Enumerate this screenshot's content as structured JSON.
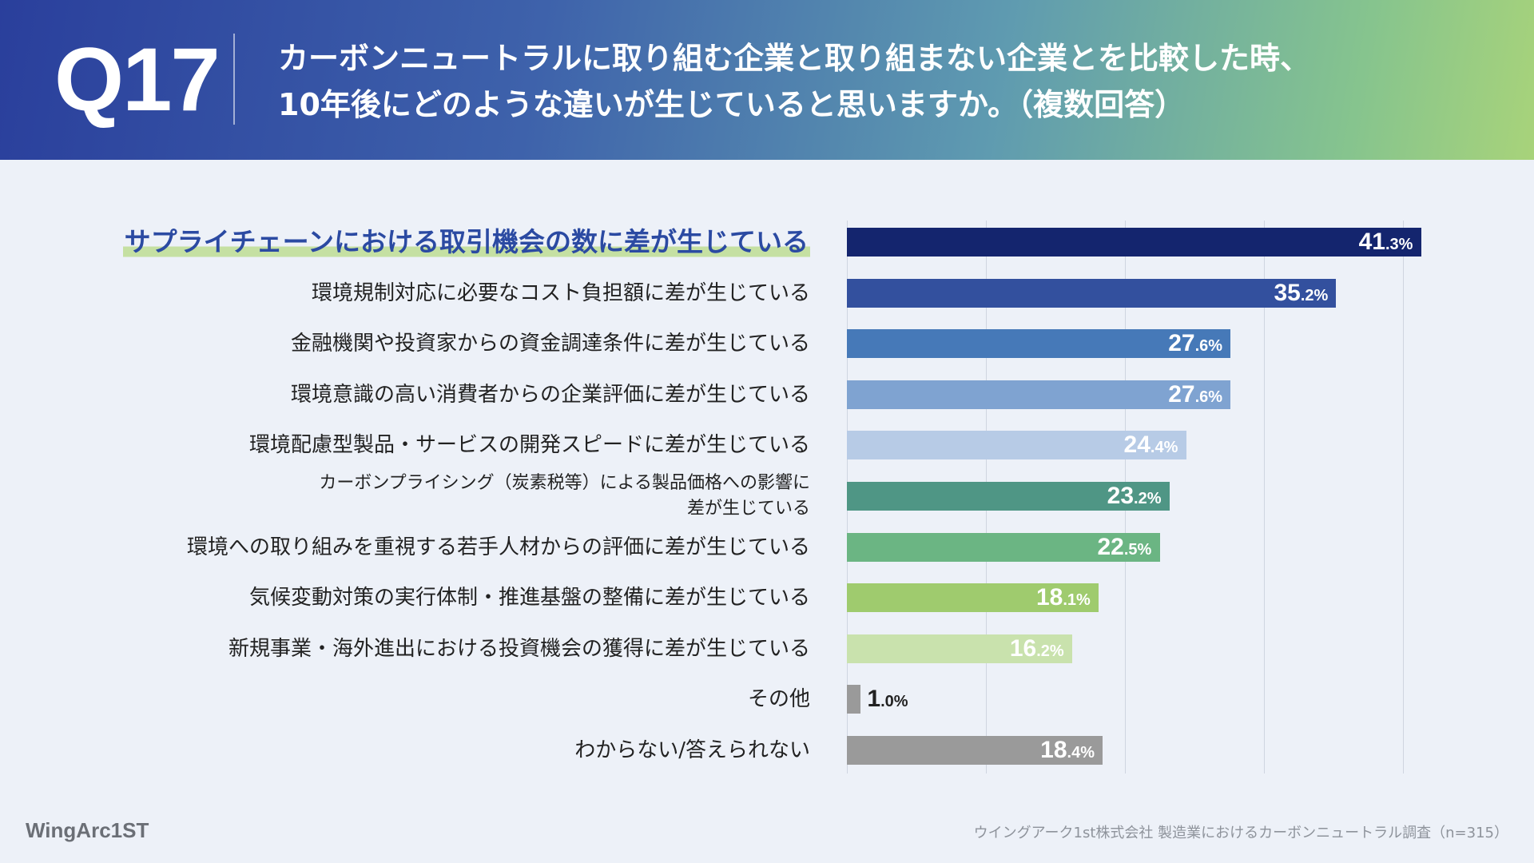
{
  "header": {
    "question_number": "Q17",
    "question_line1": "カーボンニュートラルに取り組む企業と取り組まない企業とを比較した時、",
    "question_line2": "10年後にどのような違いが生じていると思いますか。（複数回答）"
  },
  "chart_data": {
    "type": "bar",
    "orientation": "horizontal",
    "title": "カーボンニュートラルに取り組む企業と取り組まない企業とを比較した時、10年後にどのような違いが生じていると思いますか。（複数回答）",
    "unit": "%",
    "xlim": [
      0,
      50
    ],
    "grid": true,
    "categories": [
      "サプライチェーンにおける取引機会の数に差が生じている",
      "環境規制対応に必要なコスト負担額に差が生じている",
      "金融機関や投資家からの資金調達条件に差が生じている",
      "環境意識の高い消費者からの企業評価に差が生じている",
      "環境配慮型製品・サービスの開発スピードに差が生じている",
      "カーボンプライシング（炭素税等）による製品価格への影響に差が生じている",
      "環境への取り組みを重視する若手人材からの評価に差が生じている",
      "気候変動対策の実行体制・推進基盤の整備に差が生じている",
      "新規事業・海外進出における投資機会の獲得に差が生じている",
      "その他",
      "わからない/答えられない"
    ],
    "category_display": [
      {
        "lines": [
          "サプライチェーンにおける取引機会の数に差が生じている"
        ]
      },
      {
        "lines": [
          "環境規制対応に必要なコスト負担額に差が生じている"
        ]
      },
      {
        "lines": [
          "金融機関や投資家からの資金調達条件に差が生じている"
        ]
      },
      {
        "lines": [
          "環境意識の高い消費者からの企業評価に差が生じている"
        ]
      },
      {
        "lines": [
          "環境配慮型製品・サービスの開発スピードに差が生じている"
        ]
      },
      {
        "lines": [
          "カーボンプライシング（炭素税等）による製品価格への影響に",
          "差が生じている"
        ]
      },
      {
        "lines": [
          "環境への取り組みを重視する若手人材からの評価に差が生じている"
        ]
      },
      {
        "lines": [
          "気候変動対策の実行体制・推進基盤の整備に差が生じている"
        ]
      },
      {
        "lines": [
          "新規事業・海外進出における投資機会の獲得に差が生じている"
        ]
      },
      {
        "lines": [
          "その他"
        ]
      },
      {
        "lines": [
          "わからない/答えられない"
        ]
      }
    ],
    "values": [
      41.3,
      35.2,
      27.6,
      27.6,
      24.4,
      23.2,
      22.5,
      18.1,
      16.2,
      1.0,
      18.4
    ],
    "value_labels": [
      {
        "int": "41",
        "dec": ".3%"
      },
      {
        "int": "35",
        "dec": ".2%"
      },
      {
        "int": "27",
        "dec": ".6%"
      },
      {
        "int": "27",
        "dec": ".6%"
      },
      {
        "int": "24",
        "dec": ".4%"
      },
      {
        "int": "23",
        "dec": ".2%"
      },
      {
        "int": "22",
        "dec": ".5%"
      },
      {
        "int": "18",
        "dec": ".1%"
      },
      {
        "int": "16",
        "dec": ".2%"
      },
      {
        "int": "1",
        "dec": ".0%"
      },
      {
        "int": "18",
        "dec": ".4%"
      }
    ],
    "colors": [
      "#14256e",
      "#33509e",
      "#4679b8",
      "#7fa3d1",
      "#b7cbe6",
      "#4f9685",
      "#6bb583",
      "#9fcb6e",
      "#c9e2ad",
      "#9a9a9a",
      "#9a9a9a"
    ],
    "highlight_index": 0
  },
  "footer": {
    "logo_text": "WingArc1ST",
    "source": "ウイングアーク1st株式会社 製造業におけるカーボンニュートラル調査（n=315）"
  }
}
